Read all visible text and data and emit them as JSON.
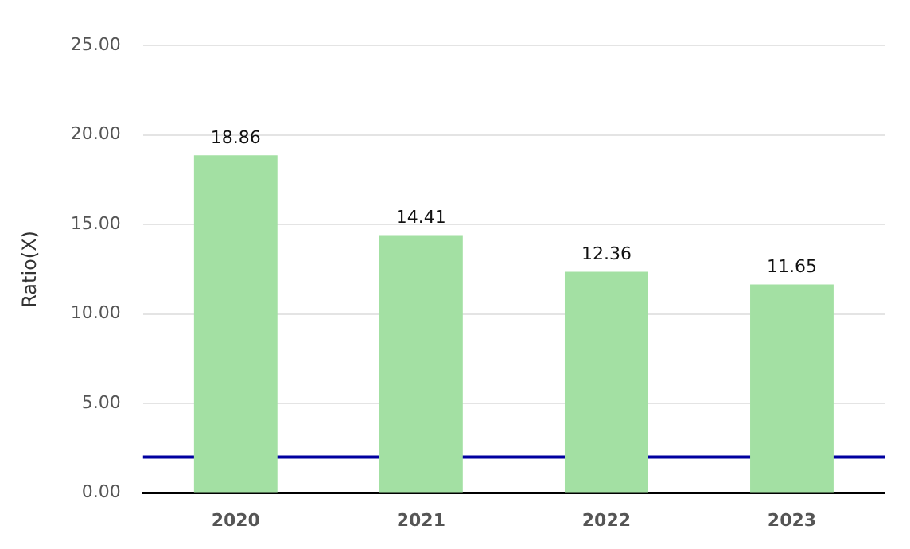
{
  "chart_data": {
    "type": "bar",
    "ylabel": "Ratio(X)",
    "categories": [
      "2020",
      "2021",
      "2022",
      "2023"
    ],
    "series": [
      {
        "color": "#a3e0a3",
        "values": [
          18.86,
          14.41,
          12.36,
          11.65
        ]
      }
    ],
    "ylim": [
      0,
      25
    ],
    "yticks": [
      {
        "value": 0,
        "label": "0.00"
      },
      {
        "value": 5,
        "label": "5.00"
      },
      {
        "value": 10,
        "label": "10.00"
      },
      {
        "value": 15,
        "label": "15.00"
      },
      {
        "value": 20,
        "label": "20.00"
      },
      {
        "value": 25,
        "label": "25.00"
      }
    ],
    "ref_lines": [
      {
        "axis": "y",
        "value": 2,
        "color": "#0000a0"
      }
    ],
    "data_labels": true,
    "grid": "y",
    "legend": false
  }
}
